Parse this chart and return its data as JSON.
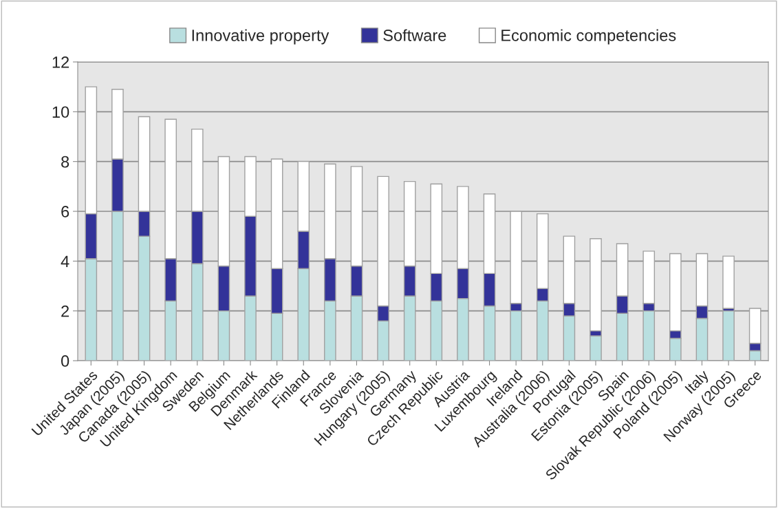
{
  "chart_data": {
    "type": "bar",
    "stacked": true,
    "categories": [
      "United States",
      "Japan (2005)",
      "Canada (2005)",
      "United Kingdom",
      "Sweden",
      "Belgium",
      "Denmark",
      "Netherlands",
      "Finland",
      "France",
      "Slovenia",
      "Hungary (2005)",
      "Germany",
      "Czech Republic",
      "Austria",
      "Luxembourg",
      "Ireland",
      "Australia (2006)",
      "Portugal",
      "Estonia (2005)",
      "Spain",
      "Slovak Republic (2006)",
      "Poland (2005)",
      "Italy",
      "Norway (2005)",
      "Greece"
    ],
    "series": [
      {
        "name": "Innovative property",
        "color": "#b9dfe0",
        "values": [
          4.1,
          6.0,
          5.0,
          2.4,
          3.9,
          2.0,
          2.6,
          1.9,
          3.7,
          2.4,
          2.6,
          1.6,
          2.6,
          2.4,
          2.5,
          2.2,
          2.0,
          2.4,
          1.8,
          1.0,
          1.9,
          2.0,
          0.9,
          1.7,
          2.0,
          0.4
        ]
      },
      {
        "name": "Software",
        "color": "#333399",
        "values": [
          1.8,
          2.1,
          1.0,
          1.7,
          2.1,
          1.8,
          3.2,
          1.8,
          1.5,
          1.7,
          1.2,
          0.6,
          1.2,
          1.1,
          1.2,
          1.3,
          0.3,
          0.5,
          0.5,
          0.2,
          0.7,
          0.3,
          0.3,
          0.5,
          0.1,
          0.3
        ]
      },
      {
        "name": "Economic competencies",
        "color": "#ffffff",
        "values": [
          5.1,
          2.8,
          3.8,
          5.6,
          3.3,
          4.4,
          2.4,
          4.4,
          2.8,
          3.8,
          4.0,
          5.2,
          3.4,
          3.6,
          3.3,
          3.2,
          3.7,
          3.0,
          2.7,
          3.7,
          2.1,
          2.1,
          3.1,
          2.1,
          2.1,
          1.4
        ]
      }
    ],
    "ylim": [
      0,
      12
    ],
    "yticks": [
      0,
      2,
      4,
      6,
      8,
      10,
      12
    ],
    "grid": "y",
    "legend": "top"
  }
}
